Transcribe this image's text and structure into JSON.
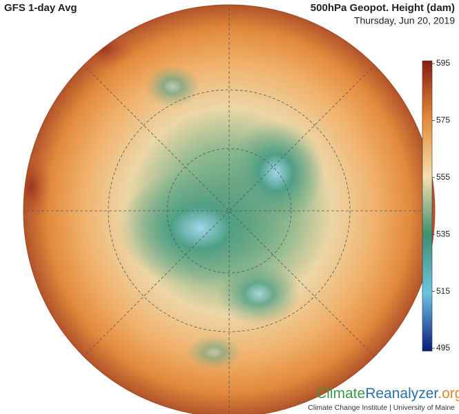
{
  "header": {
    "title": "GFS 1-day Avg",
    "variable": "500hPa Geopot. Height (dam)",
    "date": "Thursday, Jun 20, 2019"
  },
  "colorbar": {
    "ticks": [
      595,
      575,
      555,
      535,
      515,
      495
    ]
  },
  "logo": {
    "part1": "Climate",
    "part2": "Reanalyzer",
    "part3": ".org",
    "subtitle": "Climate Change Institute | University of Maine"
  }
}
